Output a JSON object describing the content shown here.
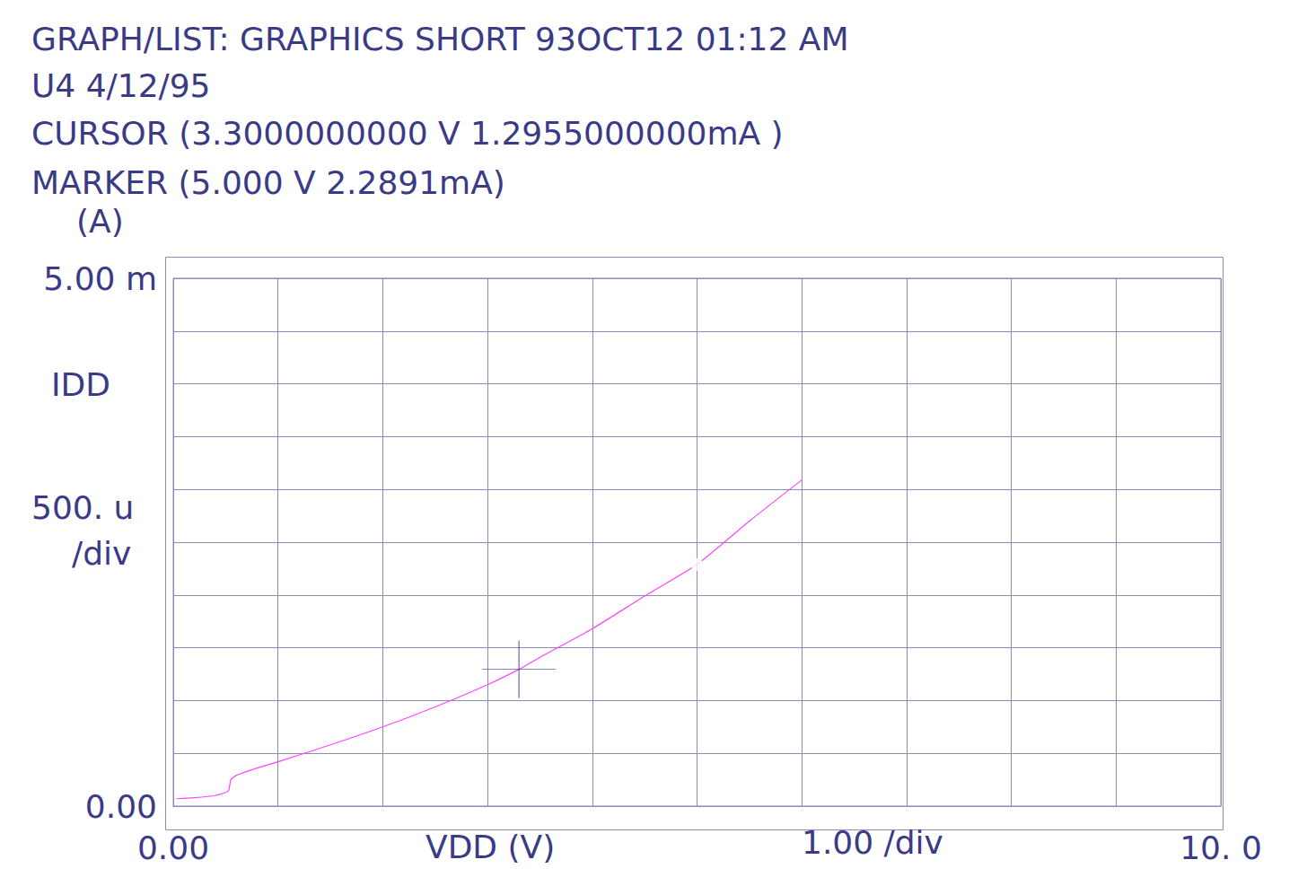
{
  "chart_data": {
    "type": "line",
    "title": "GRAPH/LIST: GRAPHICS SHORT 93OCT12 01:12 AM",
    "subtitle": "U4 4/12/95",
    "annotations": [
      {
        "text": "CURSOR (3.3000000000 V 1.2955000000mA )",
        "x": 3.3,
        "y": 0.0012955,
        "marker": "cross"
      },
      {
        "text": "MARKER (5.000 V 2.2891mA)",
        "x": 5.0,
        "y": 0.0022891,
        "marker": "circle"
      }
    ],
    "y_unit": "(A)",
    "ylabel": "IDD",
    "y_scale_label": [
      "500. u",
      "/div"
    ],
    "xlabel": "VDD (V)",
    "x_scale_label": "1.00 /div",
    "x": [
      0.03,
      0.2,
      0.4,
      0.5,
      0.53,
      0.55,
      0.6,
      0.8,
      1.0,
      1.5,
      2.0,
      2.5,
      3.0,
      3.3,
      3.5,
      4.0,
      4.5,
      5.0,
      5.5,
      6.0
    ],
    "values": [
      7e-05,
      8e-05,
      0.0001,
      0.00013,
      0.00015,
      0.00025,
      0.00029,
      0.00036,
      0.00042,
      0.00058,
      0.00075,
      0.00094,
      0.00115,
      0.0012955,
      0.00141,
      0.00168,
      0.00199,
      0.0022891,
      0.0027,
      0.00309
    ],
    "color": "#ff44ff",
    "xlim": [
      0,
      10
    ],
    "ylim": [
      0,
      0.005
    ],
    "xticks": [
      {
        "value": 0,
        "label": "0.00"
      },
      {
        "value": 10,
        "label": "10. 0"
      }
    ],
    "yticks": [
      {
        "value": 0,
        "label": "0.00"
      },
      {
        "value": 0.005,
        "label": "5.00 m"
      }
    ],
    "grid": true
  }
}
